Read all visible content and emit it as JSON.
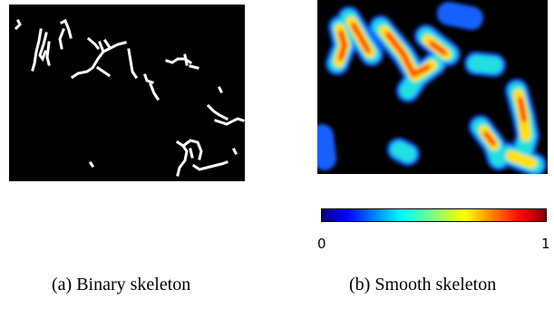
{
  "figure": {
    "panel_a": {
      "caption": "(a) Binary skeleton"
    },
    "panel_b": {
      "caption": "(b) Smooth skeleton",
      "colorbar": {
        "min_label": "0",
        "max_label": "1",
        "colormap": "jet"
      }
    }
  },
  "colors": {
    "background": "#000000",
    "skeleton": "#ffffff",
    "jet_stops": [
      "#00007f",
      "#0000ff",
      "#007fff",
      "#00ffff",
      "#7fff7f",
      "#ffff00",
      "#ff7f00",
      "#ff0000",
      "#7f0000"
    ]
  }
}
